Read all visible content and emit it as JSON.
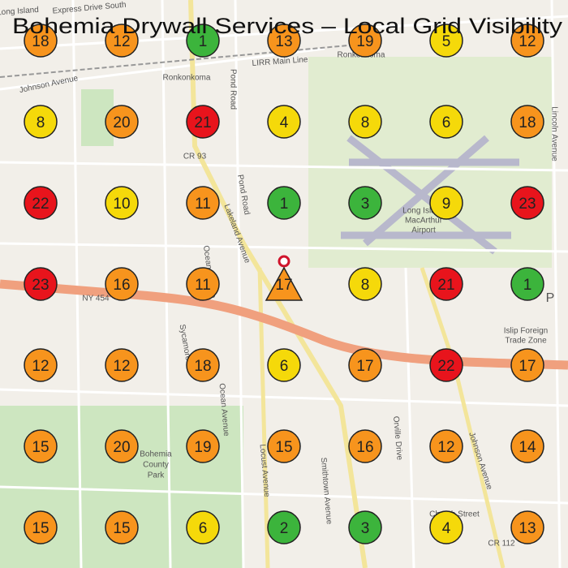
{
  "header": {
    "title": "Bohemia Drywall Services – Local Grid Visibility"
  },
  "grid": {
    "rows": [
      [
        {
          "rank": 18,
          "color": "#f7941d"
        },
        {
          "rank": 12,
          "color": "#f7941d"
        },
        {
          "rank": 1,
          "color": "#3cb43c"
        },
        {
          "rank": 13,
          "color": "#f7941d"
        },
        {
          "rank": 19,
          "color": "#f7941d"
        },
        {
          "rank": 5,
          "color": "#f5d90a"
        },
        {
          "rank": 12,
          "color": "#f7941d"
        }
      ],
      [
        {
          "rank": 8,
          "color": "#f5d90a"
        },
        {
          "rank": 20,
          "color": "#f7941d"
        },
        {
          "rank": 21,
          "color": "#e8141c"
        },
        {
          "rank": 4,
          "color": "#f5d90a"
        },
        {
          "rank": 8,
          "color": "#f5d90a"
        },
        {
          "rank": 6,
          "color": "#f5d90a"
        },
        {
          "rank": 18,
          "color": "#f7941d"
        }
      ],
      [
        {
          "rank": 22,
          "color": "#e8141c"
        },
        {
          "rank": 10,
          "color": "#f5d90a"
        },
        {
          "rank": 11,
          "color": "#f7941d"
        },
        {
          "rank": 1,
          "color": "#3cb43c"
        },
        {
          "rank": 3,
          "color": "#3cb43c"
        },
        {
          "rank": 9,
          "color": "#f5d90a"
        },
        {
          "rank": 23,
          "color": "#e8141c"
        }
      ],
      [
        {
          "rank": 23,
          "color": "#e8141c"
        },
        {
          "rank": 16,
          "color": "#f7941d"
        },
        {
          "rank": 11,
          "color": "#f7941d"
        },
        {
          "rank": 17,
          "color": "#f7941d",
          "shape": "triangle"
        },
        {
          "rank": 8,
          "color": "#f5d90a"
        },
        {
          "rank": 21,
          "color": "#e8141c"
        },
        {
          "rank": 1,
          "color": "#3cb43c"
        }
      ],
      [
        {
          "rank": 12,
          "color": "#f7941d"
        },
        {
          "rank": 12,
          "color": "#f7941d"
        },
        {
          "rank": 18,
          "color": "#f7941d"
        },
        {
          "rank": 6,
          "color": "#f5d90a"
        },
        {
          "rank": 17,
          "color": "#f7941d"
        },
        {
          "rank": 22,
          "color": "#e8141c"
        },
        {
          "rank": 17,
          "color": "#f7941d"
        }
      ],
      [
        {
          "rank": 15,
          "color": "#f7941d"
        },
        {
          "rank": 20,
          "color": "#f7941d"
        },
        {
          "rank": 19,
          "color": "#f7941d"
        },
        {
          "rank": 15,
          "color": "#f7941d"
        },
        {
          "rank": 16,
          "color": "#f7941d"
        },
        {
          "rank": 12,
          "color": "#f7941d"
        },
        {
          "rank": 14,
          "color": "#f7941d"
        }
      ],
      [
        {
          "rank": 15,
          "color": "#f7941d"
        },
        {
          "rank": 15,
          "color": "#f7941d"
        },
        {
          "rank": 6,
          "color": "#f5d90a"
        },
        {
          "rank": 2,
          "color": "#3cb43c"
        },
        {
          "rank": 3,
          "color": "#3cb43c"
        },
        {
          "rank": 4,
          "color": "#f5d90a"
        },
        {
          "rank": 13,
          "color": "#f7941d"
        }
      ]
    ]
  },
  "map_labels": [
    "Express Drive South",
    "Long Island",
    "Johnson Avenue",
    "Ronkonkoma",
    "LIRR Main Line",
    "Ronkonkoma",
    "Pond Road",
    "CR 93",
    "Pond Road",
    "Lakeland Avenue",
    "Long Island",
    "MacArthur",
    "Airport",
    "NY 454",
    "Ocean Avenue",
    "Sycamore",
    "Ocean Avenue",
    "Bohemia",
    "County",
    "Park",
    "Locust Avenue",
    "Smithtown Avenue",
    "Orville Drive",
    "Johnson Avenue",
    "Islip Foreign",
    "Trade Zone",
    "Lincoln Avenue",
    "CR 112",
    "Church Street",
    "P"
  ]
}
